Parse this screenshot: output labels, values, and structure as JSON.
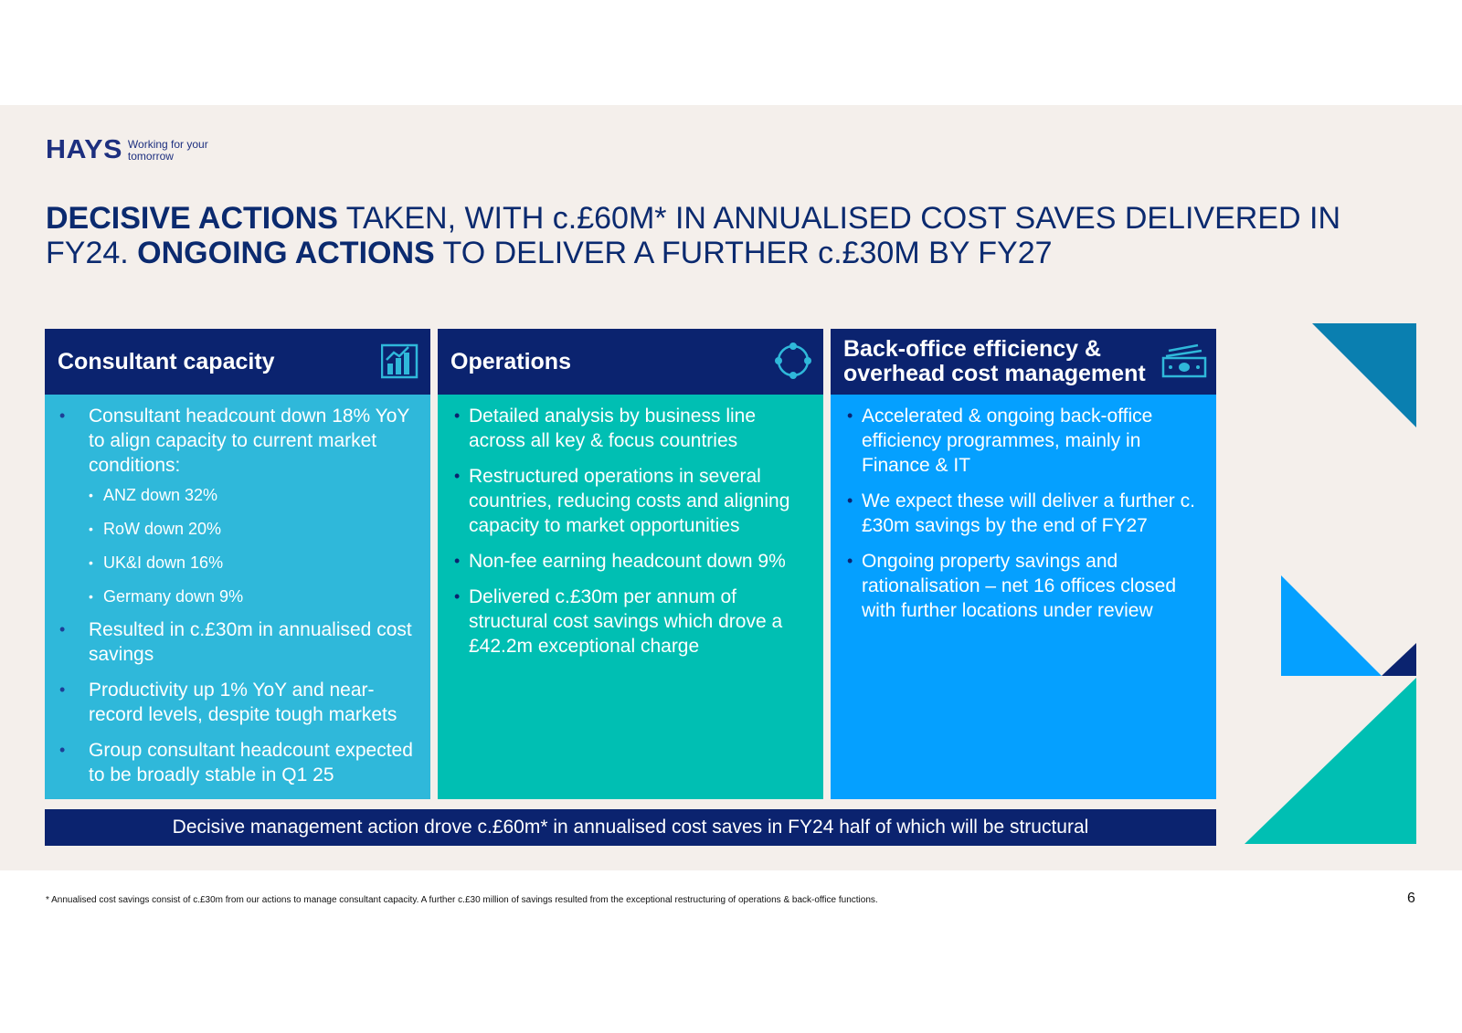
{
  "logo": {
    "word": "HAYS",
    "tagline": "Working for your tomorrow"
  },
  "title": {
    "bold1": "DECISIVE ACTIONS",
    "rest1": " TAKEN, WITH c.£60M* IN ANNUALISED COST SAVES DELIVERED IN FY24. ",
    "bold2": "ONGOING ACTIONS",
    "rest2": " TO DELIVER A FURTHER c.£30M BY FY27"
  },
  "columns": [
    {
      "title": "Consultant capacity",
      "icon": "bar-chart-icon",
      "bullets": [
        "Consultant headcount down 18% YoY to align capacity to current market conditions:",
        "Resulted in c.£30m in annualised cost savings",
        "Productivity up 1% YoY and near-record levels, despite tough markets",
        "Group consultant headcount expected to be broadly stable in Q1 25"
      ],
      "sub_bullets": [
        "ANZ down 32%",
        "RoW down 20%",
        "UK&I down 16%",
        "Germany down 9%"
      ]
    },
    {
      "title": "Operations",
      "icon": "cycle-icon",
      "bullets": [
        "Detailed analysis by business line across all key & focus countries",
        "Restructured operations in several countries, reducing costs and aligning capacity to market opportunities",
        "Non-fee earning headcount down 9%",
        "Delivered c.£30m per annum of structural cost savings which drove a £42.2m exceptional charge"
      ]
    },
    {
      "title": "Back-office efficiency & overhead cost management",
      "icon": "money-stack-icon",
      "bullets": [
        "Accelerated & ongoing back-office efficiency programmes, mainly in Finance & IT",
        "We expect these will deliver a further c.£30m savings by the end of FY27",
        "Ongoing property savings and rationalisation – net 16 offices closed with further locations under review"
      ]
    }
  ],
  "banner": "Decisive management action drove c.£60m* in annualised cost saves in FY24 half of which will be structural",
  "footnote": "* Annualised cost savings consist of c.£30m from our actions to manage consultant capacity. A further c.£30 million of savings resulted from the exceptional restructuring of operations & back-office functions.",
  "page_number": "6",
  "colors": {
    "navy": "#0b236f",
    "cyan": "#2fb8da",
    "teal": "#00bfb3",
    "blue": "#05a0ff",
    "background": "#f4efeb"
  }
}
